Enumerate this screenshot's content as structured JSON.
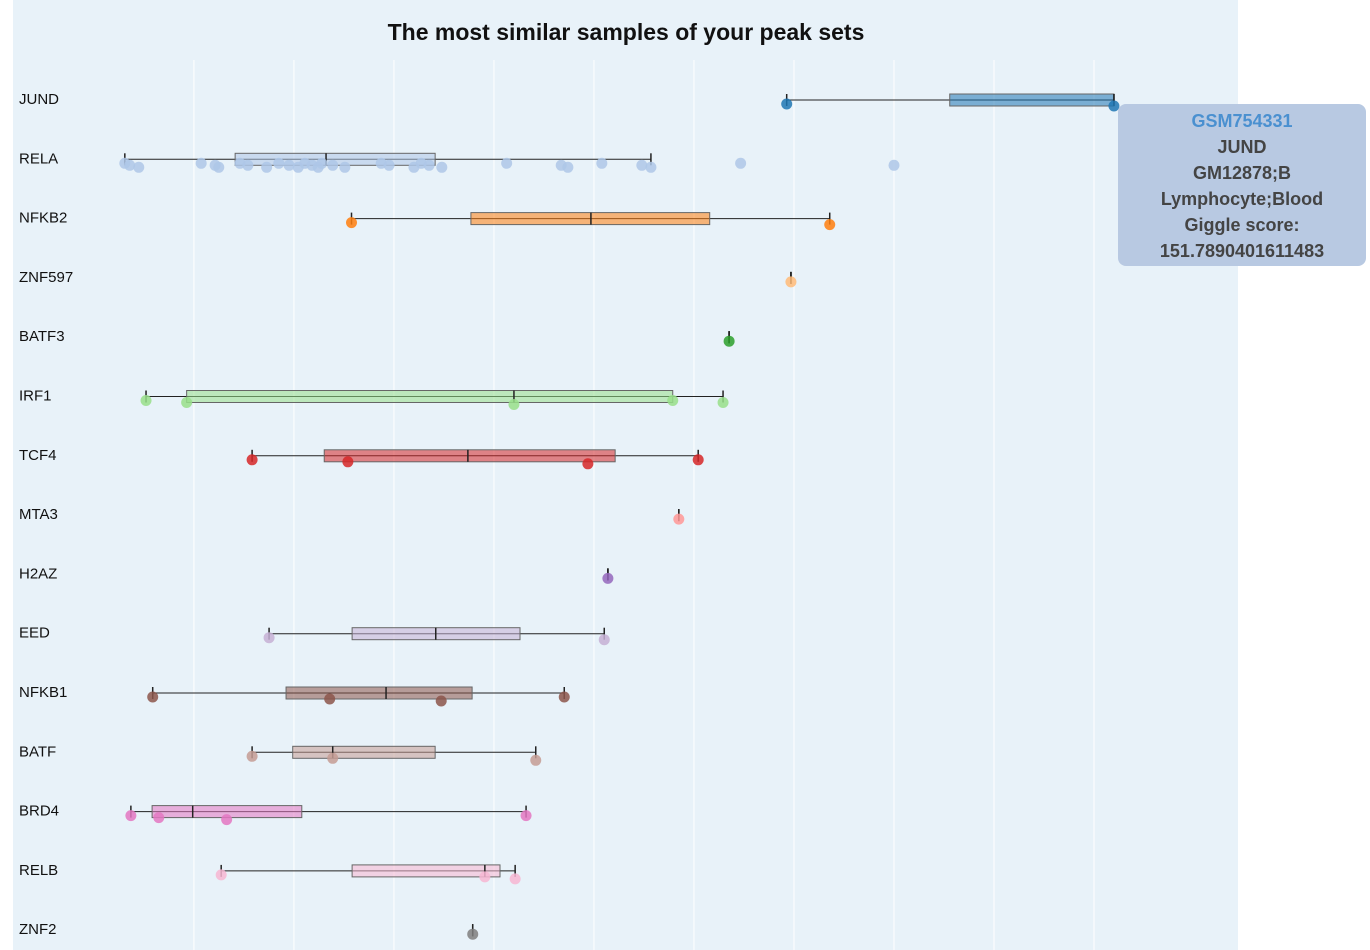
{
  "chart_data": {
    "type": "box",
    "title": "The most similar samples of your peak sets",
    "orientation": "horizontal",
    "grid": true,
    "xlim": [
      -15,
      165
    ],
    "xticks": [
      0,
      16.5,
      33,
      49.5,
      66,
      82.5,
      99,
      115.5,
      132,
      148.5
    ],
    "series": [
      {
        "name": "JUND",
        "color": "#1f77b4",
        "min": 97.8,
        "q1": 124.7,
        "median": 151.79,
        "q3": 151.79,
        "max": 151.79,
        "points": [
          97.8,
          151.79
        ]
      },
      {
        "name": "RELA",
        "color": "#aec7e8",
        "min": -11.4,
        "q1": 6.8,
        "median": 21.8,
        "q3": 39.8,
        "max": 75.4,
        "points": [
          -11.4,
          -10.6,
          -9.1,
          1.2,
          3.5,
          4.1,
          7.6,
          8.9,
          12.0,
          14.0,
          15.7,
          17.2,
          18.3,
          19.5,
          20.5,
          21.1,
          22.9,
          24.9,
          30.9,
          32.2,
          36.3,
          37.5,
          38.8,
          40.9,
          51.6,
          60.6,
          61.7,
          67.3,
          73.9,
          75.4,
          90.2,
          115.5
        ]
      },
      {
        "name": "NFKB2",
        "color": "#ff7f0e",
        "min": 26.0,
        "q1": 45.7,
        "median": 65.5,
        "q3": 85.1,
        "max": 104.9,
        "points": [
          26.0,
          104.9
        ]
      },
      {
        "name": "ZNF597",
        "color": "#ffbb78",
        "min": 98.5,
        "q1": 98.5,
        "median": 98.5,
        "q3": 98.5,
        "max": 98.5,
        "points": [
          98.5
        ]
      },
      {
        "name": "BATF3",
        "color": "#2ca02c",
        "min": 88.3,
        "q1": 88.3,
        "median": 88.3,
        "q3": 88.3,
        "max": 88.3,
        "points": [
          88.3
        ]
      },
      {
        "name": "IRF1",
        "color": "#98df8a",
        "min": -7.9,
        "q1": -1.2,
        "median": 52.8,
        "q3": 79.0,
        "max": 87.3,
        "points": [
          -7.9,
          -1.2,
          52.8,
          79.0,
          87.3
        ]
      },
      {
        "name": "TCF4",
        "color": "#d62728",
        "min": 9.6,
        "q1": 21.5,
        "median": 45.2,
        "q3": 69.5,
        "max": 83.2,
        "points": [
          9.6,
          25.4,
          65.0,
          83.2
        ]
      },
      {
        "name": "MTA3",
        "color": "#ff9896",
        "min": 80.0,
        "q1": 80.0,
        "median": 80.0,
        "q3": 80.0,
        "max": 80.0,
        "points": [
          80.0
        ]
      },
      {
        "name": "H2AZ",
        "color": "#9467bd",
        "min": 68.3,
        "q1": 68.3,
        "median": 68.3,
        "q3": 68.3,
        "max": 68.3,
        "points": [
          68.3
        ]
      },
      {
        "name": "EED",
        "color": "#c5b0d5",
        "min": 12.4,
        "q1": 26.1,
        "median": 39.9,
        "q3": 53.8,
        "max": 67.7,
        "points": [
          12.4,
          67.7
        ]
      },
      {
        "name": "NFKB1",
        "color": "#8c564b",
        "min": -6.8,
        "q1": 15.2,
        "median": 31.7,
        "q3": 45.9,
        "max": 61.1,
        "points": [
          -6.8,
          22.4,
          40.8,
          61.1
        ]
      },
      {
        "name": "BATF",
        "color": "#c49c94",
        "min": 9.6,
        "q1": 16.3,
        "median": 22.9,
        "q3": 39.8,
        "max": 56.4,
        "points": [
          9.6,
          22.9,
          56.4
        ]
      },
      {
        "name": "BRD4",
        "color": "#e377c2",
        "min": -10.4,
        "q1": -6.9,
        "median": -0.2,
        "q3": 17.8,
        "max": 54.8,
        "points": [
          -10.4,
          -5.8,
          5.4,
          54.8
        ]
      },
      {
        "name": "RELB",
        "color": "#f7b6d2",
        "min": 4.5,
        "q1": 26.1,
        "median": 48.0,
        "q3": 50.5,
        "max": 53.0,
        "points": [
          4.5,
          48.0,
          53.0
        ]
      },
      {
        "name": "ZNF2",
        "color": "#7f7f7f",
        "min": 46.0,
        "q1": 46.0,
        "median": 46.0,
        "q3": 46.0,
        "max": 46.0,
        "points": [
          46.0
        ]
      }
    ]
  },
  "tooltip": {
    "sample": "GSM754331",
    "factor": "JUND",
    "cell": "GM12878;B",
    "tissue": "Lymphocyte;Blood",
    "score_label": "Giggle score:",
    "score": "151.7890401611483"
  }
}
